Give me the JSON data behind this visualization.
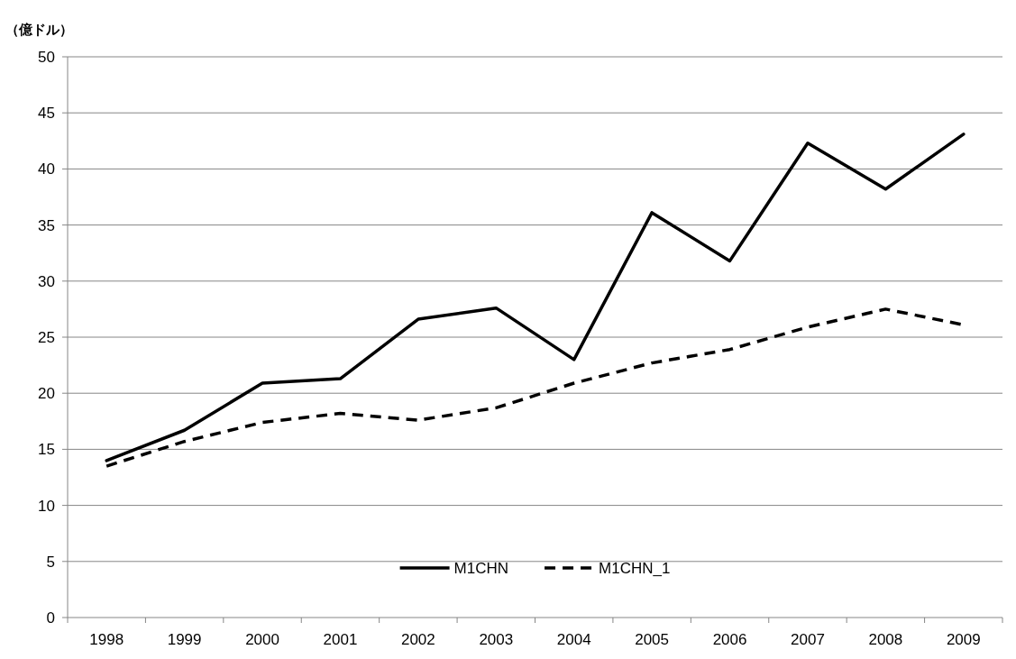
{
  "chart_data": {
    "type": "line",
    "ylabel": "（億ドル）",
    "categories": [
      "1998",
      "1999",
      "2000",
      "2001",
      "2002",
      "2003",
      "2004",
      "2005",
      "2006",
      "2007",
      "2008",
      "2009"
    ],
    "series": [
      {
        "name": "M1CHN",
        "color": "#000000",
        "line_style": "solid",
        "values": [
          14.0,
          16.7,
          20.9,
          21.3,
          26.6,
          27.6,
          23.0,
          36.1,
          31.8,
          42.3,
          38.2,
          43.1
        ]
      },
      {
        "name": "M1CHN_1",
        "color": "#000000",
        "line_style": "dashed",
        "values": [
          13.5,
          15.7,
          17.4,
          18.2,
          17.6,
          18.7,
          20.9,
          22.7,
          23.9,
          25.9,
          27.5,
          26.1
        ]
      }
    ],
    "ylim": [
      0,
      50
    ],
    "yticks": [
      0,
      5,
      10,
      15,
      20,
      25,
      30,
      35,
      40,
      45,
      50
    ],
    "grid": "y",
    "legend": "bottom"
  }
}
